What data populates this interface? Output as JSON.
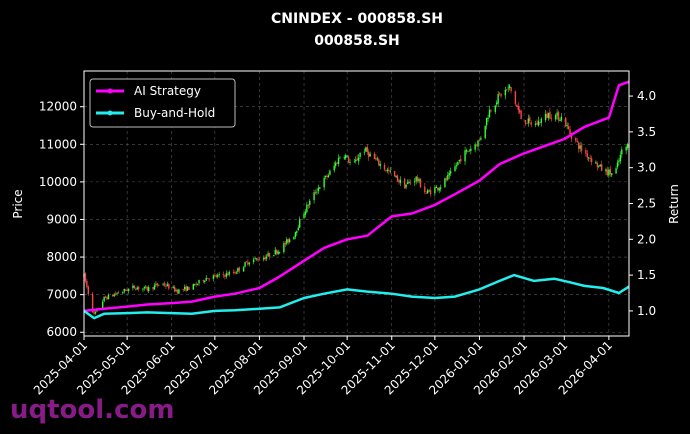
{
  "chart_data": {
    "type": "candlestick-line",
    "title": "CNINDEX - 000858.SH",
    "subtitle": "000858.SH",
    "ylabel": "Price",
    "y2label": "Return",
    "xlim": [
      "2025-04-01",
      "2026-04-15"
    ],
    "ylim": [
      5900,
      12950
    ],
    "y2lim": [
      0.65,
      4.35
    ],
    "grid": true,
    "legend_position": "top-left",
    "x_ticks": [
      "2025-04-01",
      "2025-05-01",
      "2025-06-01",
      "2025-07-01",
      "2025-08-01",
      "2025-09-01",
      "2025-10-01",
      "2025-11-01",
      "2025-12-01",
      "2026-01-01",
      "2026-02-01",
      "2026-03-01",
      "2026-04-01"
    ],
    "y_ticks": [
      6000,
      7000,
      8000,
      9000,
      10000,
      11000,
      12000
    ],
    "y2_ticks": [
      1.0,
      1.5,
      2.0,
      2.5,
      3.0,
      3.5,
      4.0
    ],
    "candle_colors": {
      "up": "#33ff33",
      "down": "#ff4444"
    },
    "price_path": [
      [
        "2025-04-01",
        7500
      ],
      [
        "2025-04-08",
        6450
      ],
      [
        "2025-04-15",
        6900
      ],
      [
        "2025-04-25",
        7050
      ],
      [
        "2025-05-06",
        7200
      ],
      [
        "2025-05-15",
        7150
      ],
      [
        "2025-05-25",
        7300
      ],
      [
        "2025-06-05",
        7100
      ],
      [
        "2025-06-15",
        7200
      ],
      [
        "2025-06-25",
        7450
      ],
      [
        "2025-07-05",
        7500
      ],
      [
        "2025-07-15",
        7600
      ],
      [
        "2025-07-25",
        7900
      ],
      [
        "2025-08-05",
        8000
      ],
      [
        "2025-08-15",
        8200
      ],
      [
        "2025-08-25",
        8600
      ],
      [
        "2025-09-01",
        9200
      ],
      [
        "2025-09-10",
        9800
      ],
      [
        "2025-09-20",
        10300
      ],
      [
        "2025-09-28",
        10800
      ],
      [
        "2025-10-05",
        10400
      ],
      [
        "2025-10-12",
        10900
      ],
      [
        "2025-10-20",
        10600
      ],
      [
        "2025-11-01",
        10200
      ],
      [
        "2025-11-10",
        9900
      ],
      [
        "2025-11-18",
        10100
      ],
      [
        "2025-11-25",
        9700
      ],
      [
        "2025-12-05",
        9900
      ],
      [
        "2025-12-12",
        10200
      ],
      [
        "2025-12-20",
        10700
      ],
      [
        "2026-01-01",
        11100
      ],
      [
        "2026-01-08",
        11900
      ],
      [
        "2026-01-15",
        12300
      ],
      [
        "2026-01-22",
        12500
      ],
      [
        "2026-01-30",
        11700
      ],
      [
        "2026-02-08",
        11500
      ],
      [
        "2026-02-18",
        11800
      ],
      [
        "2026-02-28",
        11700
      ],
      [
        "2026-03-05",
        11300
      ],
      [
        "2026-03-12",
        10900
      ],
      [
        "2026-03-20",
        10600
      ],
      [
        "2026-03-28",
        10300
      ],
      [
        "2026-04-05",
        10200
      ],
      [
        "2026-04-10",
        10800
      ],
      [
        "2026-04-15",
        11000
      ]
    ],
    "series": [
      {
        "name": "AI Strategy",
        "color": "#ff00ff",
        "points": [
          [
            "2025-04-01",
            1.0
          ],
          [
            "2025-04-15",
            1.03
          ],
          [
            "2025-05-01",
            1.06
          ],
          [
            "2025-05-15",
            1.09
          ],
          [
            "2025-06-01",
            1.11
          ],
          [
            "2025-06-15",
            1.13
          ],
          [
            "2025-07-01",
            1.2
          ],
          [
            "2025-07-15",
            1.24
          ],
          [
            "2025-08-01",
            1.32
          ],
          [
            "2025-08-15",
            1.48
          ],
          [
            "2025-09-01",
            1.7
          ],
          [
            "2025-09-15",
            1.88
          ],
          [
            "2025-10-01",
            2.0
          ],
          [
            "2025-10-15",
            2.05
          ],
          [
            "2025-11-01",
            2.32
          ],
          [
            "2025-11-15",
            2.36
          ],
          [
            "2025-12-01",
            2.48
          ],
          [
            "2025-12-15",
            2.63
          ],
          [
            "2026-01-01",
            2.82
          ],
          [
            "2026-01-15",
            3.05
          ],
          [
            "2026-02-01",
            3.2
          ],
          [
            "2026-02-15",
            3.3
          ],
          [
            "2026-03-01",
            3.4
          ],
          [
            "2026-03-15",
            3.57
          ],
          [
            "2026-04-01",
            3.7
          ],
          [
            "2026-04-08",
            4.15
          ],
          [
            "2026-04-15",
            4.2
          ]
        ]
      },
      {
        "name": "Buy-and-Hold",
        "color": "#22eeee",
        "points": [
          [
            "2025-04-01",
            1.0
          ],
          [
            "2025-04-08",
            0.9
          ],
          [
            "2025-04-15",
            0.96
          ],
          [
            "2025-05-01",
            0.97
          ],
          [
            "2025-05-15",
            0.98
          ],
          [
            "2025-06-01",
            0.97
          ],
          [
            "2025-06-15",
            0.96
          ],
          [
            "2025-07-01",
            1.0
          ],
          [
            "2025-07-15",
            1.01
          ],
          [
            "2025-08-01",
            1.03
          ],
          [
            "2025-08-15",
            1.05
          ],
          [
            "2025-09-01",
            1.18
          ],
          [
            "2025-09-15",
            1.24
          ],
          [
            "2025-10-01",
            1.3
          ],
          [
            "2025-10-15",
            1.27
          ],
          [
            "2025-11-01",
            1.24
          ],
          [
            "2025-11-15",
            1.2
          ],
          [
            "2025-12-01",
            1.18
          ],
          [
            "2025-12-15",
            1.2
          ],
          [
            "2026-01-01",
            1.3
          ],
          [
            "2026-01-15",
            1.42
          ],
          [
            "2026-01-25",
            1.5
          ],
          [
            "2026-02-08",
            1.42
          ],
          [
            "2026-02-22",
            1.45
          ],
          [
            "2026-03-05",
            1.4
          ],
          [
            "2026-03-15",
            1.35
          ],
          [
            "2026-03-28",
            1.32
          ],
          [
            "2026-04-08",
            1.25
          ],
          [
            "2026-04-15",
            1.34
          ]
        ]
      }
    ]
  },
  "watermark": "uqtool.com"
}
